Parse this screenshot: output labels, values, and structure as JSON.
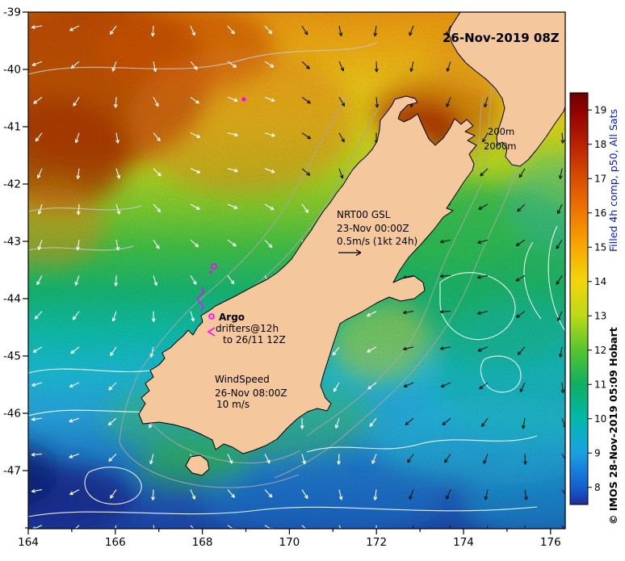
{
  "figure": {
    "datetime_label": "26-Nov-2019 08Z",
    "credit": "© IMOS 28-Nov-2019 05:09 Hobart"
  },
  "axes": {
    "x": {
      "ticks": [
        "164",
        "166",
        "168",
        "170",
        "172",
        "174",
        "176"
      ]
    },
    "y": {
      "ticks": [
        "-39",
        "-40",
        "-41",
        "-42",
        "-43",
        "-44",
        "-45",
        "-46",
        "-47"
      ]
    }
  },
  "colorbar": {
    "title": "Filled 4h comp, p50, All Sats",
    "title_color": "#0018c8",
    "tick_labels": [
      "19",
      "18",
      "17",
      "16",
      "15",
      "14",
      "13",
      "12",
      "11",
      "10",
      "9",
      "8"
    ],
    "value_range": [
      7.5,
      19.5
    ],
    "stops": [
      {
        "v": 19.5,
        "c": "#6e0000"
      },
      {
        "v": 19.0,
        "c": "#900000"
      },
      {
        "v": 18.0,
        "c": "#b92100"
      },
      {
        "v": 17.0,
        "c": "#d94e00"
      },
      {
        "v": 16.0,
        "c": "#ef7800"
      },
      {
        "v": 15.0,
        "c": "#f9a800"
      },
      {
        "v": 14.0,
        "c": "#f2d60a"
      },
      {
        "v": 13.0,
        "c": "#bcd916"
      },
      {
        "v": 12.0,
        "c": "#54c62c"
      },
      {
        "v": 11.0,
        "c": "#0fae62"
      },
      {
        "v": 10.0,
        "c": "#00b9ab"
      },
      {
        "v": 9.0,
        "c": "#1ba0e2"
      },
      {
        "v": 8.0,
        "c": "#135fd0"
      },
      {
        "v": 7.5,
        "c": "#1c2f9c"
      }
    ]
  },
  "annotations": {
    "depth200": "200m",
    "depth2000": "2000m",
    "gsl": {
      "l1": "NRT00 GSL",
      "l2": "23-Nov 00:00Z",
      "l3": "0.5m/s (1kt 24h)"
    },
    "argo": {
      "l1": "Argo",
      "l2": "drifters@12h",
      "l3": "to 26/11 12Z"
    },
    "wind": {
      "l1": "WindSpeed",
      "l2": "26-Nov 08:00Z",
      "l3": "10 m/s"
    }
  },
  "colors": {
    "land": "#f4c89c",
    "drifter_marker": "#ff00ff",
    "coastline": "#000000",
    "bathy_contour": "#a8a8a8",
    "sst_contour": "#ffffff"
  }
}
